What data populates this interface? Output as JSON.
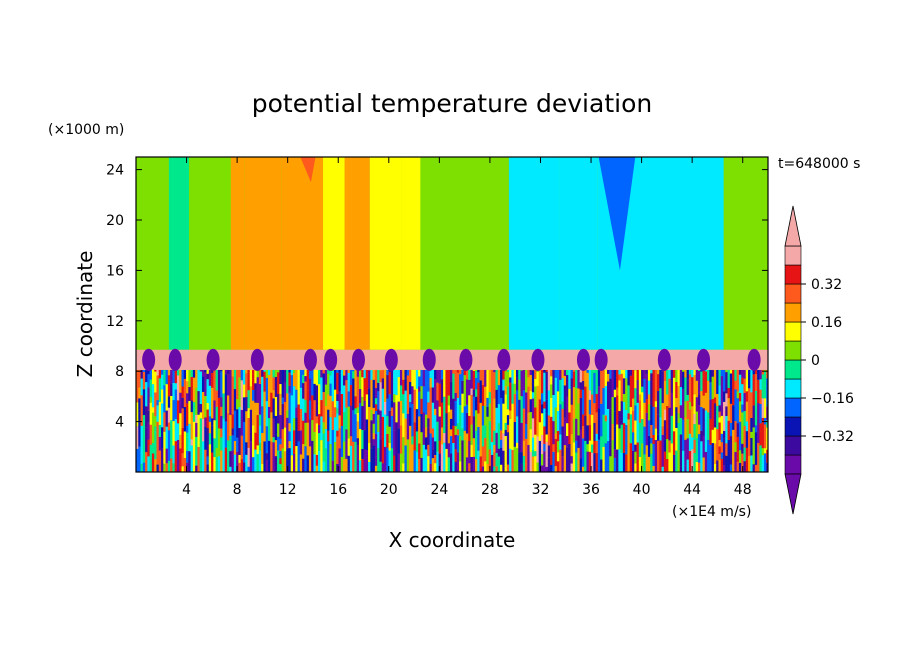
{
  "chart_data": {
    "type": "heatmap",
    "title": "potential temperature deviation",
    "xlabel": "X coordinate",
    "ylabel": "Z coordinate",
    "x_unit": "(×1E4 m/s)",
    "y_unit": "(×1000 m)",
    "time_label": "t=648000 s",
    "xlim": [
      0,
      50
    ],
    "ylim": [
      0,
      25
    ],
    "x_ticks": [
      4,
      8,
      12,
      16,
      20,
      24,
      28,
      32,
      36,
      40,
      44,
      48
    ],
    "y_ticks": [
      4,
      8,
      12,
      16,
      20,
      24
    ],
    "colorbar": {
      "levels": [
        -0.48,
        -0.4,
        -0.32,
        -0.24,
        -0.16,
        -0.08,
        0,
        0.08,
        0.16,
        0.24,
        0.32,
        0.4
      ],
      "tick_values": [
        0.32,
        0.16,
        0,
        -0.16,
        -0.32
      ],
      "tick_labels": [
        "0.32",
        "0.16",
        "0",
        "−0.16",
        "−0.32"
      ],
      "colors": [
        "#6a0aa8",
        "#3c0a9e",
        "#0a14b4",
        "#0064ff",
        "#00eaff",
        "#00e88c",
        "#7ee000",
        "#ffff00",
        "#ffa000",
        "#ff5a1e",
        "#e61414",
        "#f5a8a8"
      ],
      "under_color": "#6a0aa8",
      "over_color": "#f5a8a8"
    },
    "upper_layer_columns": [
      {
        "x": [
          0,
          2.6
        ],
        "value": 0.0
      },
      {
        "x": [
          2.6,
          4.2
        ],
        "value": -0.06
      },
      {
        "x": [
          4.2,
          7.5
        ],
        "value": 0.0
      },
      {
        "x": [
          7.5,
          8.6
        ],
        "value": 0.2
      },
      {
        "x": [
          8.6,
          11.5
        ],
        "value": 0.18
      },
      {
        "x": [
          11.5,
          14.8
        ],
        "value": 0.2
      },
      {
        "x": [
          14.8,
          16.5
        ],
        "value": 0.12
      },
      {
        "x": [
          16.5,
          18.5
        ],
        "value": 0.2
      },
      {
        "x": [
          18.5,
          21.0
        ],
        "value": 0.12
      },
      {
        "x": [
          21.0,
          22.5
        ],
        "value": 0.1
      },
      {
        "x": [
          22.5,
          26.0
        ],
        "value": 0.02
      },
      {
        "x": [
          26.0,
          29.5
        ],
        "value": 0.0
      },
      {
        "x": [
          29.5,
          33.5
        ],
        "value": -0.1
      },
      {
        "x": [
          33.5,
          36.5
        ],
        "value": -0.12
      },
      {
        "x": [
          36.5,
          46.5
        ],
        "value": -0.1
      },
      {
        "x": [
          46.5,
          50
        ],
        "value": 0.0
      }
    ],
    "upper_layer_peaks": [
      {
        "x": [
          13.0,
          14.2
        ],
        "z_bottom": 23.0,
        "value": 0.3
      },
      {
        "x": [
          36.6,
          39.5
        ],
        "z_bottom": 16.0,
        "value": -0.22
      }
    ],
    "inversion_band": {
      "z": [
        8.1,
        9.7
      ],
      "value": 0.42
    },
    "band_intrusions_x": [
      1.0,
      3.1,
      6.1,
      9.6,
      13.8,
      15.4,
      17.6,
      20.2,
      23.2,
      26.1,
      29.1,
      31.8,
      35.4,
      36.8,
      41.8,
      44.9,
      48.9
    ],
    "lower_layer": {
      "z": [
        0,
        8.1
      ],
      "description_values_range": [
        -0.48,
        0.42
      ]
    }
  }
}
